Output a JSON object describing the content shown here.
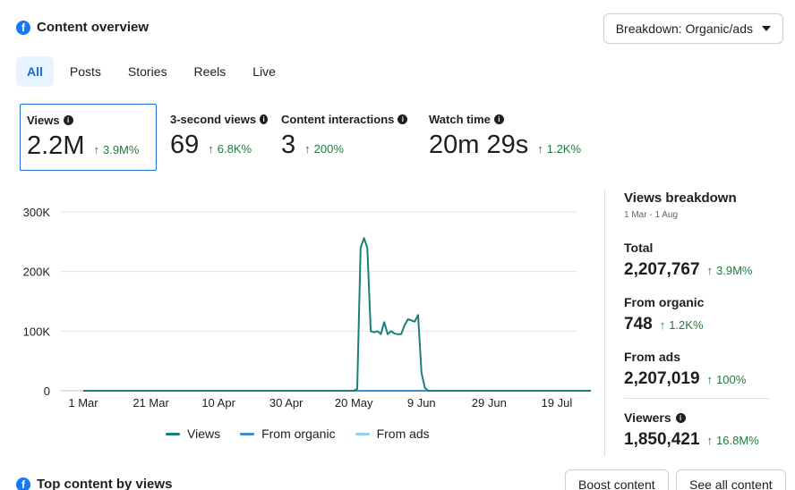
{
  "header": {
    "title": "Content overview",
    "icon": "facebook-icon"
  },
  "breakdown_button": {
    "label": "Breakdown: Organic/ads"
  },
  "tabs": [
    {
      "label": "All",
      "active": true
    },
    {
      "label": "Posts",
      "active": false
    },
    {
      "label": "Stories",
      "active": false
    },
    {
      "label": "Reels",
      "active": false
    },
    {
      "label": "Live",
      "active": false
    }
  ],
  "metrics": [
    {
      "label": "Views",
      "value": "2.2M",
      "delta": "3.9M%",
      "selected": true
    },
    {
      "label": "3-second views",
      "value": "69",
      "delta": "6.8K%",
      "selected": false
    },
    {
      "label": "Content interactions",
      "value": "3",
      "delta": "200%",
      "selected": false
    },
    {
      "label": "Watch time",
      "value": "20m 29s",
      "delta": "1.2K%",
      "selected": false
    }
  ],
  "colors": {
    "accent": "#1a6ed8",
    "positive": "#1f7a3d",
    "views": "#1a7f7a",
    "from_organic": "#3b8ed0",
    "from_ads": "#8fd3f0"
  },
  "chart_data": {
    "type": "line",
    "x_ticks": [
      "1 Mar",
      "21 Mar",
      "10 Apr",
      "30 Apr",
      "20 May",
      "9 Jun",
      "29 Jun",
      "19 Jul"
    ],
    "y_ticks": [
      "0",
      "100K",
      "200K",
      "300K"
    ],
    "ylim": [
      0,
      300000
    ],
    "xlim": [
      "2025-03-01",
      "2025-08-01"
    ],
    "grid": true,
    "legend_position": "bottom",
    "series": [
      {
        "name": "Views",
        "color": "#1a7f7a",
        "points": [
          [
            "2025-03-01",
            0
          ],
          [
            "2025-05-20",
            0
          ],
          [
            "2025-05-21",
            3000
          ],
          [
            "2025-05-22",
            240000
          ],
          [
            "2025-05-23",
            256000
          ],
          [
            "2025-05-24",
            240000
          ],
          [
            "2025-05-25",
            100000
          ],
          [
            "2025-05-26",
            98000
          ],
          [
            "2025-05-27",
            100000
          ],
          [
            "2025-05-28",
            95000
          ],
          [
            "2025-05-29",
            115000
          ],
          [
            "2025-05-30",
            95000
          ],
          [
            "2025-05-31",
            100000
          ],
          [
            "2025-06-01",
            96000
          ],
          [
            "2025-06-02",
            95000
          ],
          [
            "2025-06-03",
            95000
          ],
          [
            "2025-06-04",
            110000
          ],
          [
            "2025-06-05",
            120000
          ],
          [
            "2025-06-06",
            118000
          ],
          [
            "2025-06-07",
            116000
          ],
          [
            "2025-06-08",
            127000
          ],
          [
            "2025-06-09",
            30000
          ],
          [
            "2025-06-10",
            5000
          ],
          [
            "2025-06-11",
            0
          ],
          [
            "2025-08-01",
            0
          ]
        ]
      },
      {
        "name": "From organic",
        "color": "#3b8ed0",
        "points": [
          [
            "2025-03-01",
            0
          ],
          [
            "2025-08-01",
            0
          ]
        ]
      },
      {
        "name": "From ads",
        "color": "#8fd3f0",
        "points": [
          [
            "2025-03-01",
            0
          ],
          [
            "2025-08-01",
            0
          ]
        ]
      }
    ]
  },
  "breakdown": {
    "title": "Views breakdown",
    "date_range": "1 Mar - 1 Aug",
    "items": [
      {
        "label": "Total",
        "value": "2,207,767",
        "delta": "3.9M%",
        "info": false
      },
      {
        "label": "From organic",
        "value": "748",
        "delta": "1.2K%",
        "info": false
      },
      {
        "label": "From ads",
        "value": "2,207,019",
        "delta": "100%",
        "info": false
      },
      {
        "label": "Viewers",
        "value": "1,850,421",
        "delta": "16.8M%",
        "info": true
      }
    ]
  },
  "bottom": {
    "title": "Top content by views",
    "boost_label": "Boost content",
    "see_all_label": "See all content"
  }
}
